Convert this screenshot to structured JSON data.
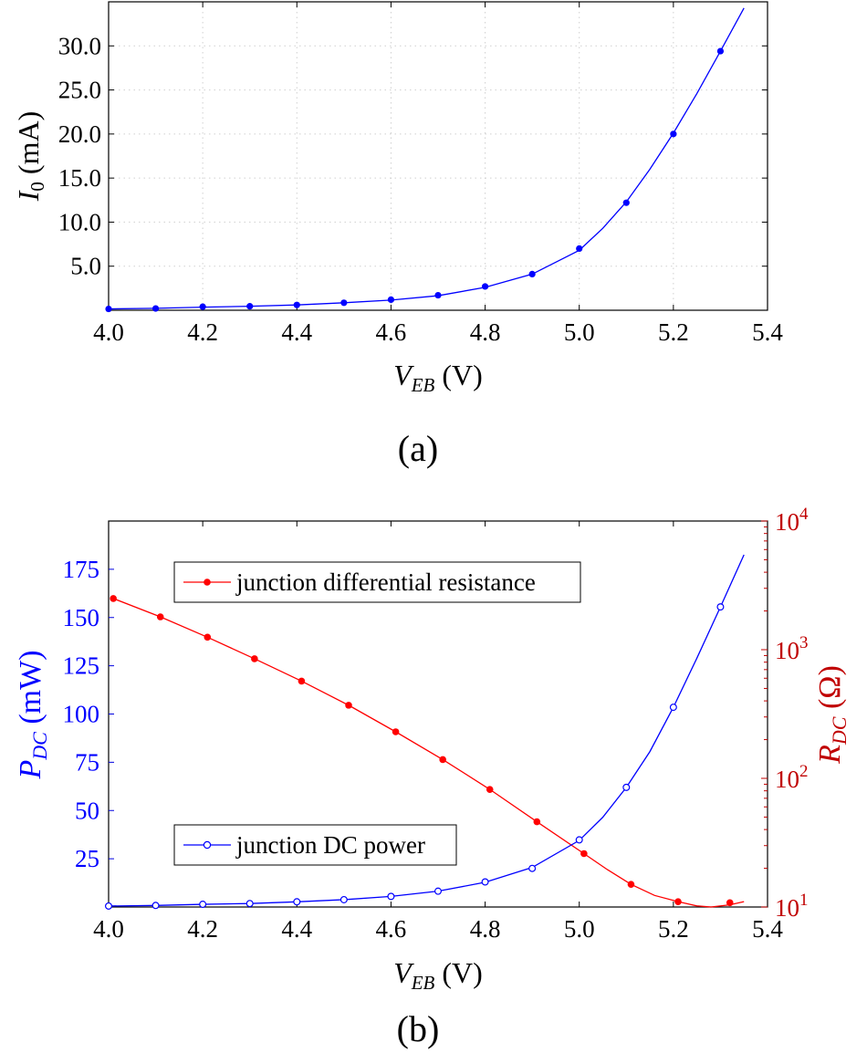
{
  "chart_data": [
    {
      "type": "line",
      "panel_label": "(a)",
      "xlabel": "V_EB (V)",
      "ylabel": "I_0 (mA)",
      "xlim": [
        4.0,
        5.4
      ],
      "ylim": [
        0,
        35
      ],
      "x_ticks": [
        "4.0",
        "4.2",
        "4.4",
        "4.6",
        "4.8",
        "5.0",
        "5.2",
        "5.4"
      ],
      "y_ticks": [
        "5.0",
        "10.0",
        "15.0",
        "20.0",
        "25.0",
        "30.0"
      ],
      "grid": true,
      "color": "#0000ff",
      "series": [
        {
          "markers": "filled-circle",
          "x": [
            4.0,
            4.1,
            4.2,
            4.3,
            4.4,
            4.5,
            4.6,
            4.7,
            4.8,
            4.9,
            5.0,
            5.1,
            5.2,
            5.3
          ],
          "y": [
            0.15,
            0.2,
            0.4,
            0.45,
            0.6,
            0.85,
            1.2,
            1.7,
            2.7,
            4.1,
            7.0,
            12.2,
            20.0,
            29.4
          ]
        }
      ],
      "curve": {
        "x": [
          4.0,
          4.1,
          4.2,
          4.3,
          4.4,
          4.5,
          4.6,
          4.7,
          4.8,
          4.9,
          5.0,
          5.05,
          5.1,
          5.15,
          5.2,
          5.25,
          5.3,
          5.35
        ],
        "y": [
          0.15,
          0.22,
          0.35,
          0.45,
          0.6,
          0.85,
          1.15,
          1.65,
          2.6,
          4.1,
          6.8,
          9.3,
          12.3,
          16.0,
          20.1,
          24.6,
          29.4,
          34.3
        ]
      }
    },
    {
      "type": "line",
      "panel_label": "(b)",
      "xlabel": "V_EB (V)",
      "ylabel_left": "P_DC (mW)",
      "ylabel_right": "R_DC (Ω)",
      "xlim": [
        4.0,
        5.4
      ],
      "ylim_left": [
        0,
        200
      ],
      "ylim_right": [
        10,
        10000
      ],
      "y_right_scale": "log",
      "x_ticks": [
        "4.0",
        "4.2",
        "4.4",
        "4.6",
        "4.8",
        "5.0",
        "5.2",
        "5.4"
      ],
      "y_left_ticks": [
        "25",
        "50",
        "75",
        "100",
        "125",
        "150",
        "175"
      ],
      "y_right_ticks": [
        {
          "base": "10",
          "exp": "1"
        },
        {
          "base": "10",
          "exp": "2"
        },
        {
          "base": "10",
          "exp": "3"
        },
        {
          "base": "10",
          "exp": "4"
        }
      ],
      "left_axis_color": "#0000ff",
      "right_axis_color": "#c00000",
      "legend_placement": "upper-left and lower-left",
      "series": [
        {
          "name": "junction differential resistance",
          "axis": "right",
          "color": "#ff0000",
          "markers": "filled-circle",
          "x": [
            4.01,
            4.11,
            4.21,
            4.31,
            4.41,
            4.51,
            4.61,
            4.71,
            4.81,
            4.91,
            5.01,
            5.11,
            5.21,
            5.32
          ],
          "y": [
            2500,
            1800,
            1250,
            850,
            570,
            370,
            230,
            140,
            82,
            46,
            26,
            15,
            11,
            10.8
          ],
          "curve": {
            "x": [
              4.01,
              4.11,
              4.21,
              4.31,
              4.41,
              4.51,
              4.61,
              4.71,
              4.81,
              4.91,
              5.01,
              5.06,
              5.11,
              5.16,
              5.21,
              5.25,
              5.28,
              5.32,
              5.35
            ],
            "y": [
              2500,
              1800,
              1250,
              850,
              570,
              370,
              230,
              140,
              82,
              46,
              26,
              19.5,
              15,
              12.3,
              11,
              10.2,
              10,
              10.4,
              11
            ]
          }
        },
        {
          "name": "junction DC power",
          "axis": "left",
          "color": "#0000ff",
          "markers": "open-circle",
          "x": [
            4.0,
            4.1,
            4.2,
            4.3,
            4.4,
            4.5,
            4.6,
            4.7,
            4.8,
            4.9,
            5.0,
            5.1,
            5.2,
            5.3
          ],
          "y": [
            0.5,
            0.8,
            1.4,
            1.8,
            2.7,
            3.8,
            5.5,
            8.2,
            13.0,
            20.0,
            34.8,
            62.0,
            103.5,
            155.5
          ],
          "curve": {
            "x": [
              4.0,
              4.1,
              4.2,
              4.3,
              4.4,
              4.5,
              4.6,
              4.7,
              4.8,
              4.9,
              5.0,
              5.05,
              5.1,
              5.15,
              5.2,
              5.25,
              5.3,
              5.35
            ],
            "y": [
              0.5,
              0.8,
              1.4,
              1.8,
              2.7,
              3.8,
              5.5,
              8.2,
              12.8,
              20.5,
              34.5,
              46.5,
              62.0,
              80.5,
              103.5,
              129.0,
              155.5,
              182.5
            ]
          }
        }
      ]
    }
  ]
}
